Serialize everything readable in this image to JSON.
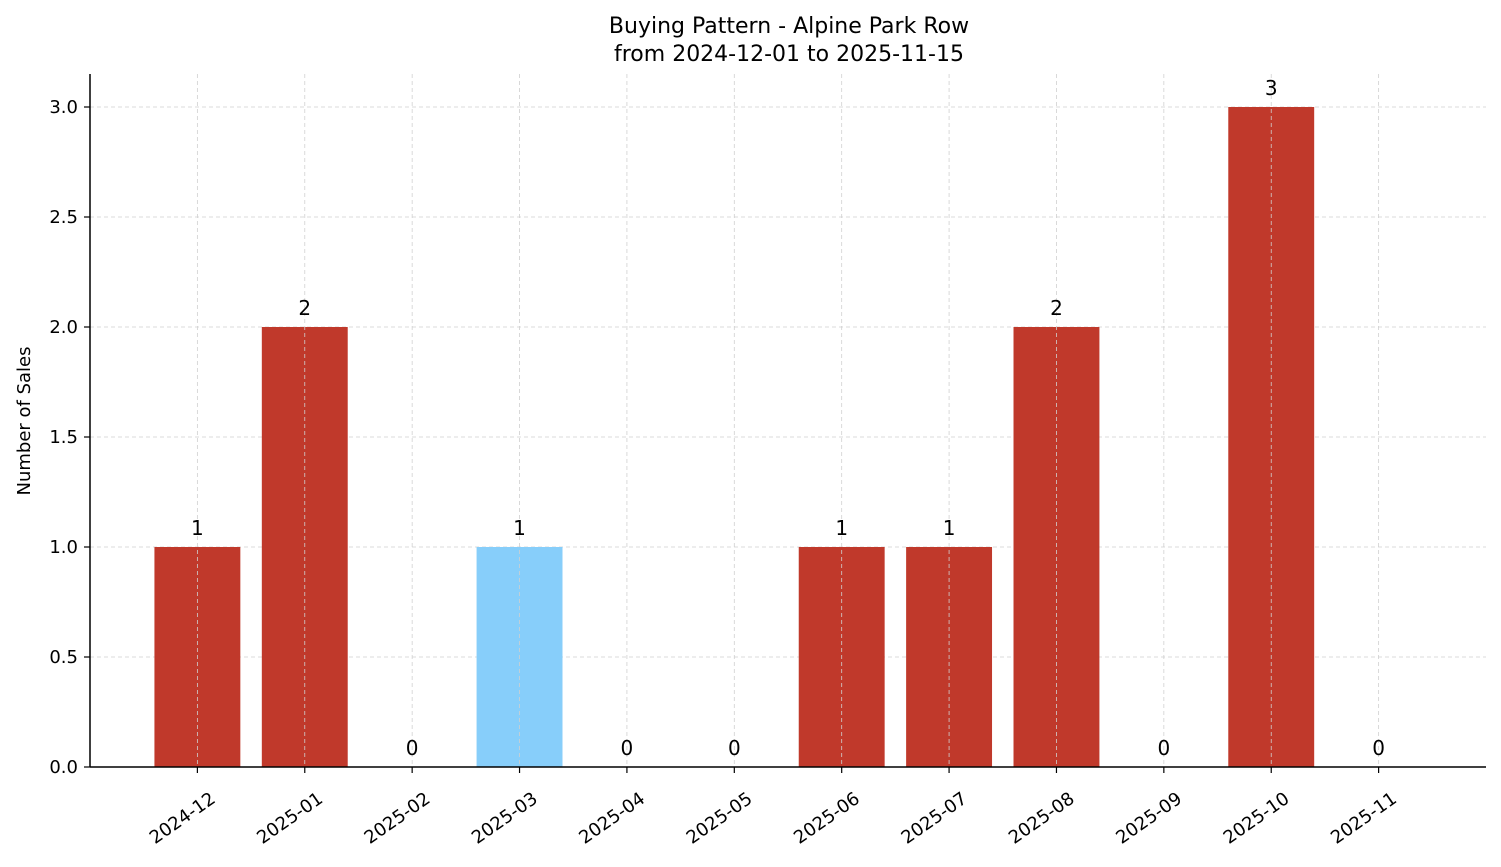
{
  "chart_data": {
    "type": "bar",
    "title": "Buying Pattern - Alpine Park Row",
    "subtitle": "from 2024-12-01 to 2025-11-15",
    "xlabel": "",
    "ylabel": "Number of Sales",
    "categories": [
      "2024-12",
      "2025-01",
      "2025-02",
      "2025-03",
      "2025-04",
      "2025-05",
      "2025-06",
      "2025-07",
      "2025-08",
      "2025-09",
      "2025-10",
      "2025-11"
    ],
    "values": [
      1,
      2,
      0,
      1,
      0,
      0,
      1,
      1,
      2,
      0,
      3,
      0
    ],
    "bar_colors": [
      "#c0392b",
      "#c0392b",
      "#c0392b",
      "#87cefa",
      "#c0392b",
      "#c0392b",
      "#c0392b",
      "#c0392b",
      "#c0392b",
      "#c0392b",
      "#c0392b",
      "#c0392b"
    ],
    "ylim": [
      0,
      3.15
    ],
    "yticks": [
      "0.0",
      "0.5",
      "1.0",
      "1.5",
      "2.0",
      "2.5",
      "3.0"
    ],
    "grid": true,
    "legend": "none"
  }
}
